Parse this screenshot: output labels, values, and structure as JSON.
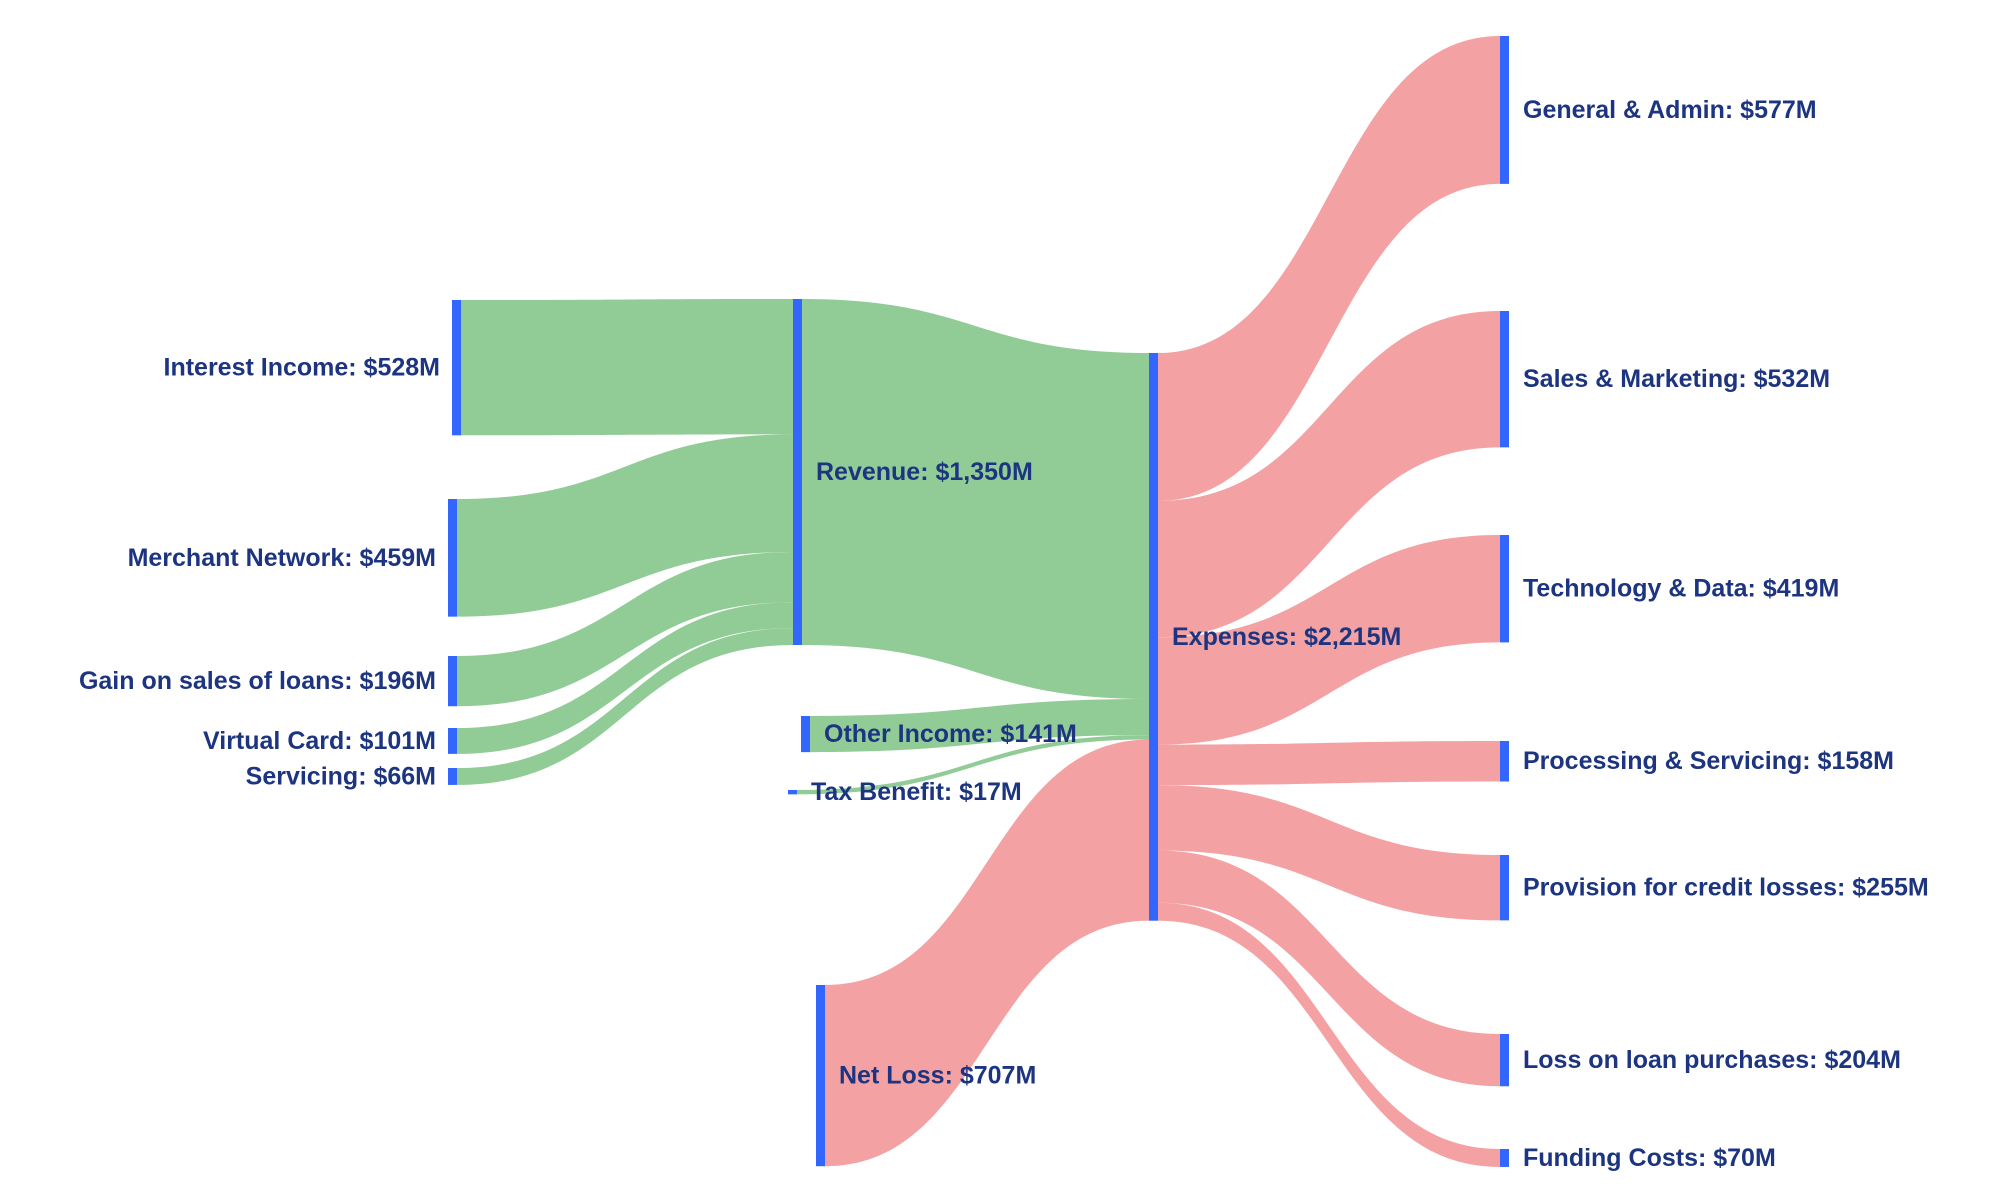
{
  "chart_data": {
    "type": "sankey",
    "units": "$M",
    "colors": {
      "node": "#3366ff",
      "income_link": "#8fcb95",
      "expense_link": "#f29c9e",
      "label": "#1d3580"
    },
    "nodes": [
      {
        "id": "interest_income",
        "label": "Interest Income: $528M",
        "value": 528
      },
      {
        "id": "merchant_network",
        "label": "Merchant Network: $459M",
        "value": 459
      },
      {
        "id": "gain_on_sales",
        "label": "Gain on sales of loans: $196M",
        "value": 196
      },
      {
        "id": "virtual_card",
        "label": "Virtual Card: $101M",
        "value": 101
      },
      {
        "id": "servicing",
        "label": "Servicing: $66M",
        "value": 66
      },
      {
        "id": "revenue",
        "label": "Revenue: $1,350M",
        "value": 1350
      },
      {
        "id": "other_income",
        "label": "Other Income: $141M",
        "value": 141
      },
      {
        "id": "tax_benefit",
        "label": "Tax Benefit: $17M",
        "value": 17
      },
      {
        "id": "net_loss",
        "label": "Net Loss: $707M",
        "value": 707
      },
      {
        "id": "expenses",
        "label": "Expenses: $2,215M",
        "value": 2215
      },
      {
        "id": "general_admin",
        "label": "General & Admin: $577M",
        "value": 577
      },
      {
        "id": "sales_marketing",
        "label": "Sales & Marketing: $532M",
        "value": 532
      },
      {
        "id": "technology_data",
        "label": "Technology & Data: $419M",
        "value": 419
      },
      {
        "id": "processing_servicing",
        "label": "Processing & Servicing: $158M",
        "value": 158
      },
      {
        "id": "provision_credit",
        "label": "Provision for credit losses: $255M",
        "value": 255
      },
      {
        "id": "loss_loan_purchases",
        "label": "Loss on loan purchases: $204M",
        "value": 204
      },
      {
        "id": "funding_costs",
        "label": "Funding Costs: $70M",
        "value": 70
      }
    ],
    "links": [
      {
        "source": "interest_income",
        "target": "revenue",
        "value": 528,
        "kind": "income"
      },
      {
        "source": "merchant_network",
        "target": "revenue",
        "value": 459,
        "kind": "income"
      },
      {
        "source": "gain_on_sales",
        "target": "revenue",
        "value": 196,
        "kind": "income"
      },
      {
        "source": "virtual_card",
        "target": "revenue",
        "value": 101,
        "kind": "income"
      },
      {
        "source": "servicing",
        "target": "revenue",
        "value": 66,
        "kind": "income"
      },
      {
        "source": "revenue",
        "target": "expenses",
        "value": 1350,
        "kind": "income"
      },
      {
        "source": "other_income",
        "target": "expenses",
        "value": 141,
        "kind": "income"
      },
      {
        "source": "tax_benefit",
        "target": "expenses",
        "value": 17,
        "kind": "income"
      },
      {
        "source": "net_loss",
        "target": "expenses",
        "value": 707,
        "kind": "expense"
      },
      {
        "source": "expenses",
        "target": "general_admin",
        "value": 577,
        "kind": "expense"
      },
      {
        "source": "expenses",
        "target": "sales_marketing",
        "value": 532,
        "kind": "expense"
      },
      {
        "source": "expenses",
        "target": "technology_data",
        "value": 419,
        "kind": "expense"
      },
      {
        "source": "expenses",
        "target": "processing_servicing",
        "value": 158,
        "kind": "expense"
      },
      {
        "source": "expenses",
        "target": "provision_credit",
        "value": 255,
        "kind": "expense"
      },
      {
        "source": "expenses",
        "target": "loss_loan_purchases",
        "value": 204,
        "kind": "expense"
      },
      {
        "source": "expenses",
        "target": "funding_costs",
        "value": 70,
        "kind": "expense"
      }
    ]
  }
}
